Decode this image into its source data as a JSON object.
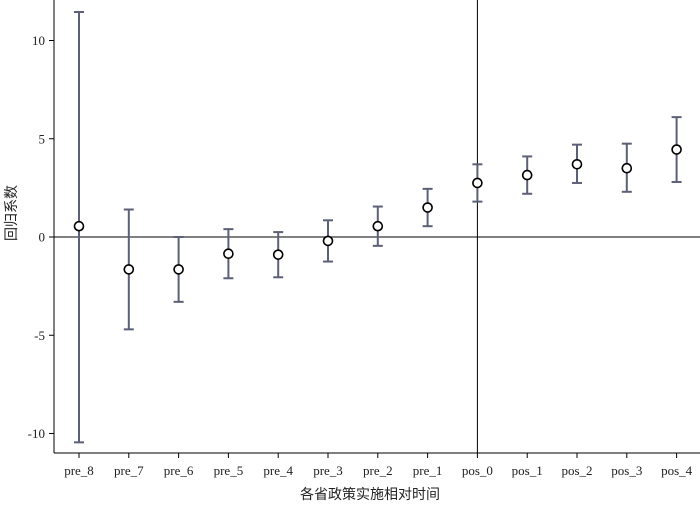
{
  "chart_data": {
    "type": "scatter",
    "subtype": "coefficient-plot-with-error-bars",
    "xlabel": "各省政策实施相对时间",
    "ylabel": "回归系数",
    "categories": [
      "pre_8",
      "pre_7",
      "pre_6",
      "pre_5",
      "pre_4",
      "pre_3",
      "pre_2",
      "pre_1",
      "pos_0",
      "pos_1",
      "pos_2",
      "pos_3",
      "pos_4"
    ],
    "values": [
      0.55,
      -1.65,
      -1.65,
      -0.85,
      -0.9,
      -0.2,
      0.55,
      1.5,
      2.75,
      3.15,
      3.7,
      3.5,
      4.45
    ],
    "ci_lower": [
      -10.45,
      -4.7,
      -3.3,
      -2.1,
      -2.05,
      -1.25,
      -0.45,
      0.55,
      1.8,
      2.2,
      2.75,
      2.3,
      2.8
    ],
    "ci_upper": [
      11.45,
      1.4,
      0,
      0.4,
      0.25,
      0.85,
      1.55,
      2.45,
      3.7,
      4.1,
      4.7,
      4.75,
      6.1
    ],
    "yticks": [
      -10,
      -5,
      0,
      5,
      10
    ],
    "ylim": [
      -11.1,
      12
    ],
    "reference_lines": {
      "y": 0,
      "x_category": "pos_0"
    },
    "grid": false,
    "colors": {
      "errorbar": "#5c6076",
      "marker": "#000000",
      "axis": "#000000",
      "refline": "#000000"
    }
  }
}
